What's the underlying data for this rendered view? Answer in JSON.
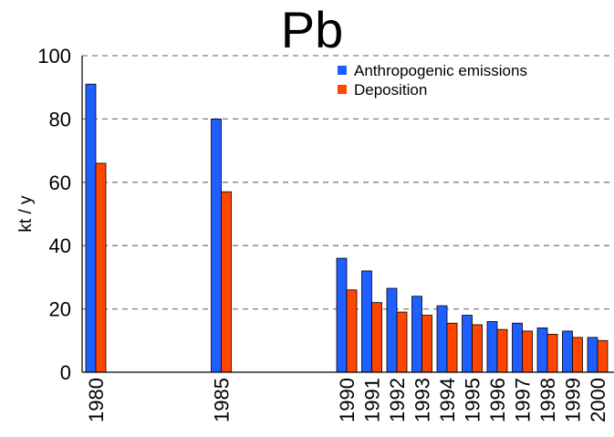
{
  "chart_data": {
    "type": "bar",
    "title": "Pb",
    "xlabel": "",
    "ylabel": "kt / y",
    "ylim": [
      0,
      100
    ],
    "yticks": [
      0,
      20,
      40,
      60,
      80,
      100
    ],
    "grid": true,
    "legend_position": "top-right",
    "categories": [
      "1980",
      "1985",
      "1990",
      "1991",
      "1992",
      "1993",
      "1994",
      "1995",
      "1996",
      "1997",
      "1998",
      "1999",
      "2000"
    ],
    "series": [
      {
        "name": "Anthropogenic emissions",
        "color": "#1f5fff",
        "values": [
          91,
          80,
          36,
          32,
          26.5,
          24,
          21,
          18,
          16,
          15.5,
          14,
          13,
          11
        ]
      },
      {
        "name": "Deposition",
        "color": "#ff4500",
        "values": [
          66,
          57,
          26,
          22,
          19,
          18,
          15.5,
          15,
          13.5,
          13,
          12,
          11,
          10
        ]
      }
    ]
  }
}
